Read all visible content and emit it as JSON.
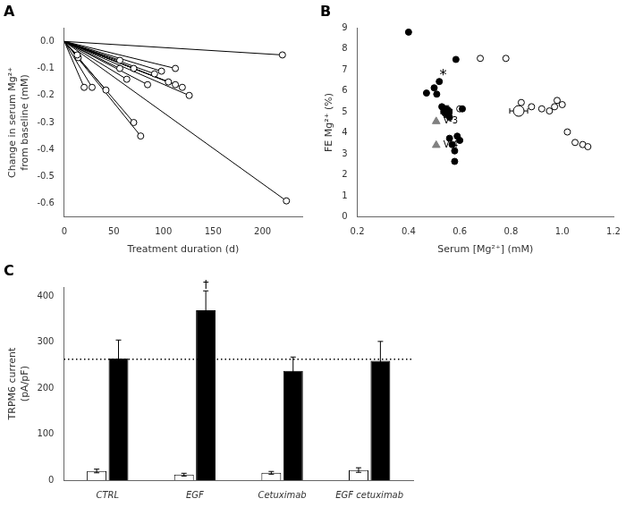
{
  "chart_data": [
    {
      "type": "line",
      "title": "A",
      "color": "black",
      "marker": "open_circle",
      "lines": [
        [
          0,
          0,
          13,
          -0.05
        ],
        [
          0,
          0,
          14,
          -0.06
        ],
        [
          0,
          0,
          20,
          -0.17
        ],
        [
          0,
          0,
          28,
          -0.17
        ],
        [
          0,
          0,
          42,
          -0.18
        ],
        [
          0,
          0,
          56,
          -0.07
        ],
        [
          0,
          0,
          56,
          -0.1
        ],
        [
          0,
          0,
          63,
          -0.14
        ],
        [
          0,
          0,
          70,
          -0.1
        ],
        [
          0,
          0,
          70,
          -0.3
        ],
        [
          0,
          0,
          77,
          -0.35
        ],
        [
          0,
          0,
          84,
          -0.16
        ],
        [
          0,
          0,
          91,
          -0.12
        ],
        [
          0,
          0,
          98,
          -0.11
        ],
        [
          0,
          0,
          105,
          -0.15
        ],
        [
          0,
          0,
          112,
          -0.1
        ],
        [
          0,
          0,
          112,
          -0.16
        ],
        [
          0,
          0,
          119,
          -0.17
        ],
        [
          0,
          0,
          126,
          -0.2
        ],
        [
          0,
          0,
          220,
          -0.05
        ],
        [
          0,
          0,
          224,
          -0.59
        ]
      ],
      "xlabel": "Treatment duration (d)",
      "ylabel": "Change in serum Mg²⁺\nfrom baseline (mM)",
      "xlim": [
        0,
        240
      ],
      "ylim": [
        -0.65,
        0.05
      ],
      "xticks": [
        0,
        50,
        100,
        150,
        200
      ],
      "yticks": [
        {
          "value": 0,
          "label": "0.0"
        },
        -0.1,
        -0.2,
        -0.3,
        -0.4,
        -0.5,
        -0.6
      ],
      "grid": false
    },
    {
      "type": "scatter",
      "title": "B",
      "series": [
        {
          "marker": "circle",
          "color": "black",
          "x": [
            0.4,
            0.47,
            0.5,
            0.51,
            0.52,
            0.53,
            0.54,
            0.55,
            0.56,
            0.56,
            0.57,
            0.58,
            0.58,
            0.585,
            0.59,
            0.6,
            0.61
          ],
          "y": [
            8.8,
            5.9,
            6.15,
            5.85,
            6.45,
            5.25,
            5.05,
            4.95,
            4.75,
            3.75,
            3.45,
            3.15,
            2.65,
            7.5,
            3.85,
            3.65,
            5.15
          ]
        },
        {
          "marker": "open_circle",
          "color": "black",
          "x": [
            0.6,
            0.68,
            0.78,
            0.84,
            0.88,
            0.92,
            0.95,
            0.97,
            0.98,
            1.0,
            1.02,
            1.05,
            1.08,
            1.1
          ],
          "y": [
            5.15,
            7.55,
            7.55,
            5.45,
            5.25,
            5.15,
            5.05,
            5.25,
            5.55,
            5.35,
            4.05,
            3.55,
            3.45,
            3.35
          ]
        },
        {
          "marker": "circle",
          "color": "black",
          "x": [
            0.548
          ],
          "y": [
            5.02
          ],
          "xerr": [
            0.022
          ],
          "yerr": [
            0.28
          ]
        },
        {
          "marker": "open_circle",
          "color": "black",
          "x": [
            0.83
          ],
          "y": [
            5.05
          ],
          "xerr": [
            0.035
          ],
          "yerr": [
            0.22
          ]
        },
        {
          "marker": "triangle",
          "color": "gray",
          "x": [
            0.508,
            0.508
          ],
          "y": [
            4.55,
            3.42
          ],
          "point_labels": [
            "V-3",
            "V-4"
          ]
        }
      ],
      "annotations": [
        {
          "text": "*",
          "x": 0.535,
          "y": 6.7
        }
      ],
      "xlabel": "Serum [Mg²⁺] (mM)",
      "ylabel": "FE Mg²⁺ (%)",
      "xlim": [
        0.2,
        1.2
      ],
      "ylim": [
        0,
        9
      ],
      "xticks": [
        0.2,
        0.4,
        0.6,
        0.8,
        {
          "value": 1.0,
          "label": "1.0"
        },
        1.2
      ],
      "yticks": [
        0,
        1,
        2,
        3,
        4,
        5,
        6,
        7,
        8,
        9
      ],
      "grid": false
    },
    {
      "type": "bar",
      "title": "C",
      "categories": [
        "CTRL",
        "EGF",
        "Cetuximab",
        "EGF cetuximab"
      ],
      "series": [
        {
          "color": "white",
          "values": [
            20,
            12,
            16,
            22
          ],
          "errors": [
            4,
            3,
            3,
            5
          ]
        },
        {
          "color": "black",
          "values": [
            265,
            370,
            238,
            260
          ],
          "errors": [
            40,
            42,
            30,
            42
          ],
          "annotations": [
            {
              "category": "EGF",
              "text": "†",
              "y": 413
            }
          ]
        }
      ],
      "hlines": [
        {
          "y": 263,
          "line_style": "dotted",
          "color": "black"
        }
      ],
      "ylabel": "TRPM6 current\n(pA/pF)",
      "ylim": [
        0,
        420
      ],
      "yticks": [
        0,
        100,
        200,
        300,
        400
      ],
      "grid": false
    }
  ]
}
